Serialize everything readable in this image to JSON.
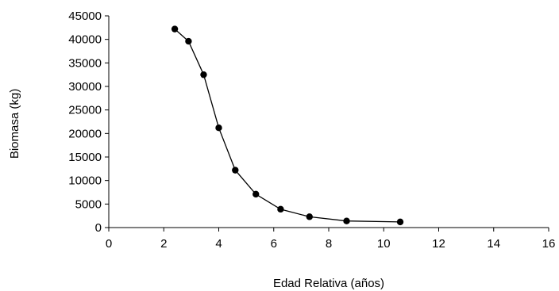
{
  "chart_data": {
    "type": "line",
    "title": "",
    "xlabel": "Edad Relativa (años)",
    "ylabel": "Biomasa (kg)",
    "xlim": [
      0,
      16
    ],
    "ylim": [
      0,
      45000
    ],
    "x_ticks": [
      0,
      2,
      4,
      6,
      8,
      10,
      12,
      14,
      16
    ],
    "y_ticks": [
      0,
      5000,
      10000,
      15000,
      20000,
      25000,
      30000,
      35000,
      40000,
      45000
    ],
    "x_tick_labels": [
      "0",
      "2",
      "4",
      "6",
      "8",
      "10",
      "12",
      "14",
      "16"
    ],
    "y_tick_labels": [
      "0",
      "5000",
      "10000",
      "15000",
      "20000",
      "25000",
      "30000",
      "35000",
      "40000",
      "45000"
    ],
    "grid": false,
    "legend": "none",
    "series": [
      {
        "marker": "circle",
        "color": "#000000",
        "x": [
          2.4,
          2.9,
          3.45,
          4.0,
          4.6,
          5.35,
          6.25,
          7.3,
          8.65,
          10.6
        ],
        "y": [
          42200,
          39600,
          32500,
          21200,
          12200,
          7100,
          3900,
          2300,
          1400,
          1200
        ]
      }
    ]
  }
}
